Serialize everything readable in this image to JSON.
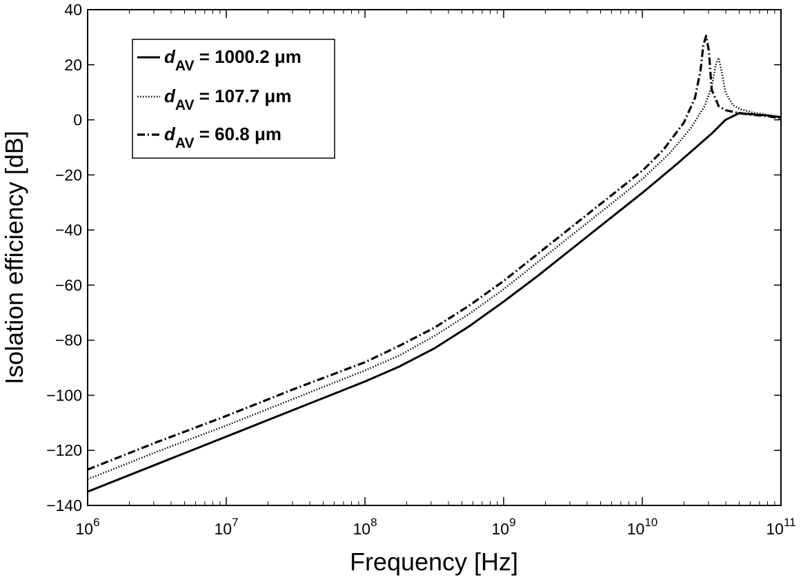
{
  "chart_data": {
    "type": "line",
    "title": "",
    "xlabel": "Frequency [Hz]",
    "ylabel": "Isolation efficiency [dB]",
    "xscale": "log",
    "xlim": [
      1000000,
      100000000000
    ],
    "ylim": [
      -140,
      40
    ],
    "grid": false,
    "legend_position": "top-left",
    "x_ticks": [
      {
        "value": 1000000,
        "base": "10",
        "exp": "6"
      },
      {
        "value": 10000000,
        "base": "10",
        "exp": "7"
      },
      {
        "value": 100000000,
        "base": "10",
        "exp": "8"
      },
      {
        "value": 1000000000,
        "base": "10",
        "exp": "9"
      },
      {
        "value": 10000000000,
        "base": "10",
        "exp": "10"
      },
      {
        "value": 100000000000,
        "base": "10",
        "exp": "11"
      }
    ],
    "y_ticks": [
      {
        "value": 40,
        "label": "40"
      },
      {
        "value": 20,
        "label": "20"
      },
      {
        "value": 0,
        "label": "0"
      },
      {
        "value": -20,
        "label": "−20"
      },
      {
        "value": -40,
        "label": "−40"
      },
      {
        "value": -60,
        "label": "−60"
      },
      {
        "value": -80,
        "label": "−80"
      },
      {
        "value": -100,
        "label": "−100"
      },
      {
        "value": -120,
        "label": "−120"
      },
      {
        "value": -140,
        "label": "−140"
      }
    ],
    "series": [
      {
        "name": "d_AV = 1000.2 μm",
        "legend_var": "d",
        "legend_sub": "AV",
        "legend_rest": " = 1000.2 μm",
        "style": "solid",
        "x_log10": [
          6,
          6.5,
          7,
          7.5,
          8,
          8.25,
          8.5,
          8.75,
          9,
          9.25,
          9.5,
          9.75,
          10,
          10.25,
          10.5,
          10.6,
          10.7,
          10.75,
          10.8,
          10.85,
          10.9,
          11
        ],
        "y": [
          -135,
          -125,
          -115,
          -105,
          -95,
          -89.5,
          -83,
          -75,
          -66,
          -56.5,
          -46.5,
          -36.5,
          -26.5,
          -16,
          -5,
          0,
          2.5,
          2.2,
          2,
          1.8,
          1.6,
          1
        ]
      },
      {
        "name": "d_AV = 107.7 μm",
        "legend_var": "d",
        "legend_sub": "AV",
        "legend_rest": " = 107.7 μm",
        "style": "dotted",
        "x_log10": [
          6,
          6.5,
          7,
          7.5,
          8,
          8.25,
          8.5,
          8.75,
          9,
          9.25,
          9.5,
          9.75,
          10,
          10.2,
          10.35,
          10.45,
          10.5,
          10.53,
          10.55,
          10.57,
          10.6,
          10.65,
          10.7,
          10.8,
          10.9,
          11
        ],
        "y": [
          -130.5,
          -120.5,
          -111,
          -101,
          -91,
          -85.5,
          -78.5,
          -70.5,
          -61.5,
          -51.5,
          -41.5,
          -31.5,
          -21.5,
          -12,
          -3,
          5,
          12,
          20,
          22.5,
          18,
          10,
          5.5,
          4,
          2.6,
          1.8,
          1
        ]
      },
      {
        "name": "d_AV = 60.8 μm",
        "legend_var": "d",
        "legend_sub": "AV",
        "legend_rest": " = 60.8 μm",
        "style": "dashdot",
        "x_log10": [
          6,
          6.5,
          7,
          7.5,
          8,
          8.25,
          8.5,
          8.75,
          9,
          9.25,
          9.5,
          9.75,
          10,
          10.15,
          10.3,
          10.38,
          10.42,
          10.44,
          10.46,
          10.48,
          10.5,
          10.55,
          10.6,
          10.7,
          10.8,
          10.9,
          11
        ],
        "y": [
          -127,
          -117,
          -107.5,
          -97.5,
          -88,
          -82,
          -75.5,
          -67.5,
          -58.5,
          -48.5,
          -38.5,
          -28.5,
          -18.5,
          -11,
          -1,
          8,
          18,
          27,
          30.5,
          25,
          11,
          5,
          3.5,
          2.4,
          1.8,
          1.4,
          0.5
        ]
      }
    ]
  }
}
